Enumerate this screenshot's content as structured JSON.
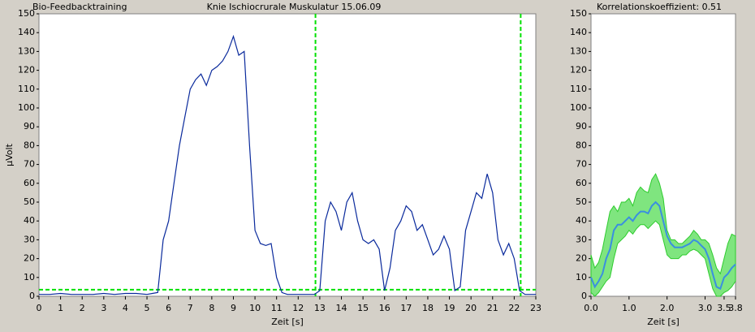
{
  "chart_data": [
    {
      "type": "line",
      "title": "Bio-Feedbacktraining",
      "subtitle": "Knie Ischiocrurale Muskulatur 15.06.09",
      "y_label": "µVolt",
      "x_label": "Zeit [s]",
      "xlim": [
        0,
        23
      ],
      "xticks": [
        0,
        1,
        2,
        3,
        4,
        5,
        6,
        7,
        8,
        9,
        10,
        11,
        12,
        13,
        14,
        15,
        16,
        17,
        18,
        19,
        20,
        21,
        22,
        23
      ],
      "ylim": [
        0,
        150
      ],
      "yticks": [
        0,
        10,
        20,
        30,
        40,
        50,
        60,
        70,
        80,
        90,
        100,
        110,
        120,
        130,
        140,
        150
      ],
      "threshold": 3.5,
      "markers": [
        12.8,
        22.3
      ],
      "marker_color": "#00e000",
      "x": [
        0,
        0.5,
        1,
        1.5,
        2,
        2.5,
        3,
        3.5,
        4,
        4.5,
        5,
        5.25,
        5.5,
        5.75,
        6,
        6.25,
        6.5,
        6.75,
        7,
        7.25,
        7.5,
        7.75,
        8,
        8.25,
        8.5,
        8.75,
        9,
        9.25,
        9.5,
        9.75,
        10,
        10.25,
        10.5,
        10.75,
        11,
        11.25,
        11.5,
        12,
        12.5,
        12.75,
        13,
        13.25,
        13.5,
        13.75,
        14,
        14.25,
        14.5,
        14.75,
        15,
        15.25,
        15.5,
        15.75,
        16,
        16.25,
        16.5,
        16.75,
        17,
        17.25,
        17.5,
        17.75,
        18,
        18.25,
        18.5,
        18.75,
        19,
        19.25,
        19.5,
        19.75,
        20,
        20.25,
        20.5,
        20.75,
        21,
        21.25,
        21.5,
        21.75,
        22,
        22.25,
        22.5,
        23
      ],
      "series": [
        {
          "color": "#0a2a9c",
          "values": [
            1,
            1,
            1.5,
            1,
            1,
            1,
            1.5,
            1,
            1.5,
            1.5,
            1,
            1.5,
            2,
            30,
            40,
            60,
            80,
            95,
            110,
            115,
            118,
            112,
            120,
            122,
            125,
            130,
            138,
            128,
            130,
            80,
            35,
            28,
            27,
            28,
            10,
            2,
            1,
            1,
            1,
            1,
            3,
            40,
            50,
            45,
            35,
            50,
            55,
            40,
            30,
            28,
            30,
            25,
            3,
            15,
            35,
            40,
            48,
            45,
            35,
            38,
            30,
            22,
            25,
            32,
            25,
            3,
            5,
            35,
            45,
            55,
            52,
            65,
            55,
            30,
            22,
            28,
            20,
            3,
            1,
            1
          ]
        }
      ]
    },
    {
      "type": "band",
      "title": "Korrelationskoeffizient: 0.51",
      "x_label": "Zeit [s]",
      "xlim": [
        0,
        3.8
      ],
      "xticks": [
        {
          "value": 0,
          "label": "0.0"
        },
        {
          "value": 1,
          "label": "1.0"
        },
        {
          "value": 2,
          "label": "2.0"
        },
        {
          "value": 3,
          "label": "3.0"
        },
        3.5,
        3.8
      ],
      "ylim": [
        0,
        150
      ],
      "yticks": [
        0,
        10,
        20,
        30,
        40,
        50,
        60,
        70,
        80,
        90,
        100,
        110,
        120,
        130,
        140,
        150
      ],
      "x": [
        0,
        0.1,
        0.2,
        0.3,
        0.4,
        0.5,
        0.6,
        0.7,
        0.8,
        0.9,
        1,
        1.1,
        1.2,
        1.3,
        1.4,
        1.5,
        1.6,
        1.7,
        1.8,
        1.9,
        2,
        2.1,
        2.2,
        2.3,
        2.4,
        2.5,
        2.6,
        2.7,
        2.8,
        2.9,
        3,
        3.1,
        3.2,
        3.3,
        3.4,
        3.5,
        3.6,
        3.7,
        3.8
      ],
      "band": {
        "color": "#7fe57f",
        "edge": "#2ecc2e",
        "upper": [
          22,
          15,
          18,
          25,
          35,
          45,
          48,
          45,
          50,
          50,
          52,
          48,
          55,
          58,
          56,
          55,
          62,
          65,
          60,
          52,
          35,
          30,
          30,
          28,
          28,
          30,
          32,
          35,
          33,
          30,
          30,
          28,
          22,
          15,
          12,
          20,
          28,
          33,
          32
        ],
        "lower": [
          2,
          0,
          2,
          5,
          8,
          10,
          20,
          28,
          30,
          32,
          35,
          33,
          36,
          38,
          38,
          36,
          38,
          40,
          38,
          30,
          22,
          20,
          20,
          20,
          22,
          22,
          24,
          25,
          24,
          22,
          20,
          12,
          4,
          0,
          0,
          2,
          3,
          5,
          8
        ]
      },
      "series": [
        {
          "color": "#3a8fe0",
          "values": [
            10,
            5,
            8,
            12,
            20,
            25,
            35,
            38,
            38,
            40,
            42,
            40,
            43,
            45,
            45,
            44,
            48,
            50,
            48,
            40,
            32,
            28,
            26,
            26,
            26,
            27,
            28,
            30,
            29,
            27,
            25,
            20,
            12,
            5,
            4,
            10,
            12,
            15,
            17
          ]
        }
      ]
    }
  ]
}
